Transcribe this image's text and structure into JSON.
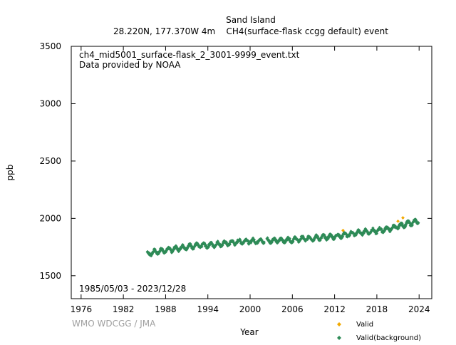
{
  "chart_data": {
    "type": "scatter",
    "title": "Sand Island",
    "subtitle": "28.220N, 177.370W 4m    CH4(surface-flask ccgg default) event",
    "annotation_file": "ch4_mid5001_surface-flask_2_3001-9999_event.txt",
    "annotation_provider": "Data provided by NOAA",
    "date_range": "1985/05/03 - 2023/12/28",
    "watermark": "WMO WDCGG / JMA",
    "xlabel": "Year",
    "ylabel": "ppb",
    "xlim": [
      1974.6,
      2025.8
    ],
    "ylim": [
      1300,
      3500
    ],
    "x_ticks": [
      "1976",
      "1982",
      "1988",
      "1994",
      "2000",
      "2006",
      "2012",
      "2018",
      "2024"
    ],
    "y_ticks": [
      "1500",
      "2000",
      "2500",
      "3000",
      "3500"
    ],
    "grid": false,
    "legend_position": "bottom-right",
    "series": [
      {
        "name": "Valid",
        "color": "#f2a900",
        "marker": "diamond",
        "x": [
          2013.2,
          2021.0,
          2021.7
        ],
        "y": [
          1895,
          1975,
          2005
        ]
      },
      {
        "name": "Valid(background)",
        "color": "#2e8b57",
        "marker": "diamond",
        "x": [
          1985.4,
          1986.0,
          1987.0,
          1988.0,
          1989.0,
          1990.0,
          1991.0,
          1992.0,
          1993.0,
          1994.0,
          1995.0,
          1996.0,
          1997.0,
          1998.0,
          1999.0,
          2000.0,
          2001.0,
          2002.0,
          2003.0,
          2004.0,
          2005.0,
          2006.0,
          2007.0,
          2008.0,
          2009.0,
          2010.0,
          2011.0,
          2012.0,
          2013.0,
          2014.0,
          2015.0,
          2016.0,
          2017.0,
          2018.0,
          2019.0,
          2020.0,
          2021.0,
          2022.0,
          2023.0,
          2023.9
        ],
        "y": [
          1690,
          1700,
          1712,
          1722,
          1730,
          1740,
          1752,
          1760,
          1762,
          1765,
          1772,
          1778,
          1784,
          1792,
          1800,
          1801,
          1802,
          1805,
          1808,
          1808,
          1810,
          1812,
          1818,
          1824,
          1828,
          1832,
          1838,
          1843,
          1850,
          1860,
          1872,
          1880,
          1886,
          1892,
          1902,
          1912,
          1928,
          1948,
          1962,
          1972
        ]
      }
    ]
  }
}
